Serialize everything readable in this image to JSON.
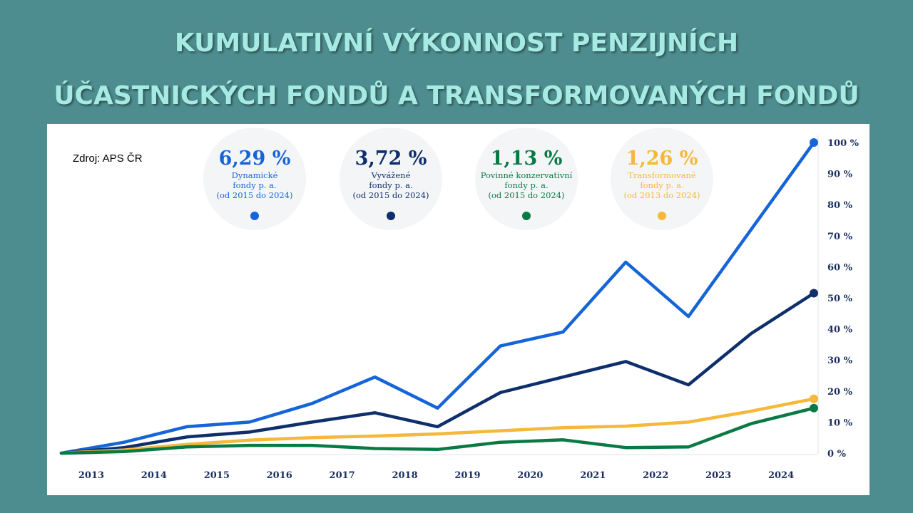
{
  "title_line1": "KUMULATIVNÍ VÝKONNOST PENZIJNÍCH",
  "title_line2": "ÚČASTNICKÝCH FONDŮ A TRANSFORMOVANÝCH FONDŮ",
  "source": "Zdroj: APS ČR",
  "bubbles": [
    {
      "value": "6,29 %",
      "label": "Dynamické\nfondy p. a.\n(od 2015 do 2024)",
      "color": "#1565d8"
    },
    {
      "value": "3,72 %",
      "label": "Vyvážené\nfondy p. a.\n(od 2015 do 2024)",
      "color": "#0e2f6b"
    },
    {
      "value": "1,13 %",
      "label": "Povinné konzervativní\nfondy p. a.\n(od 2015 do 2024)",
      "color": "#0a7a45"
    },
    {
      "value": "1,26 %",
      "label": "Transformované\nfondy p. a.\n(od 2013 do 2024)",
      "color": "#f5b83a"
    }
  ],
  "chart_data": {
    "type": "line",
    "categories": [
      "2013",
      "2014",
      "2015",
      "2016",
      "2017",
      "2018",
      "2019",
      "2020",
      "2021",
      "2022",
      "2023",
      "2024"
    ],
    "yticks": [
      "0 %",
      "10 %",
      "20 %",
      "30 %",
      "40 %",
      "50 %",
      "60 %",
      "70 %",
      "80 %",
      "90 %",
      "100 %"
    ],
    "ylim": [
      0,
      100
    ],
    "grid": false,
    "x": [
      2012.5,
      2013.5,
      2014.5,
      2015.5,
      2016.5,
      2017.5,
      2018.5,
      2019.5,
      2020.5,
      2021.5,
      2022.5,
      2023.5,
      2024.5
    ],
    "series": [
      {
        "key": "dynamic",
        "color": "#1565d8",
        "values": [
          0,
          3.5,
          8.5,
          10,
          16,
          24.5,
          14.5,
          34.5,
          39,
          61.5,
          44,
          72,
          100
        ]
      },
      {
        "key": "balanced",
        "color": "#0e2f6b",
        "values": [
          0,
          1.8,
          5.2,
          6.8,
          10,
          13,
          8.5,
          19.5,
          24.5,
          29.5,
          22,
          38.5,
          51.5
        ]
      },
      {
        "key": "transformed",
        "color": "#f5b83a",
        "values": [
          0,
          1,
          2.8,
          4.2,
          5,
          5.5,
          6.2,
          7.2,
          8.2,
          8.7,
          10,
          13.5,
          17.5
        ]
      },
      {
        "key": "conservative",
        "color": "#0a7a45",
        "values": [
          0,
          0.5,
          2,
          2.5,
          2.5,
          1.5,
          1.2,
          3.5,
          4.3,
          1.8,
          2,
          9.5,
          14.5
        ]
      }
    ]
  }
}
